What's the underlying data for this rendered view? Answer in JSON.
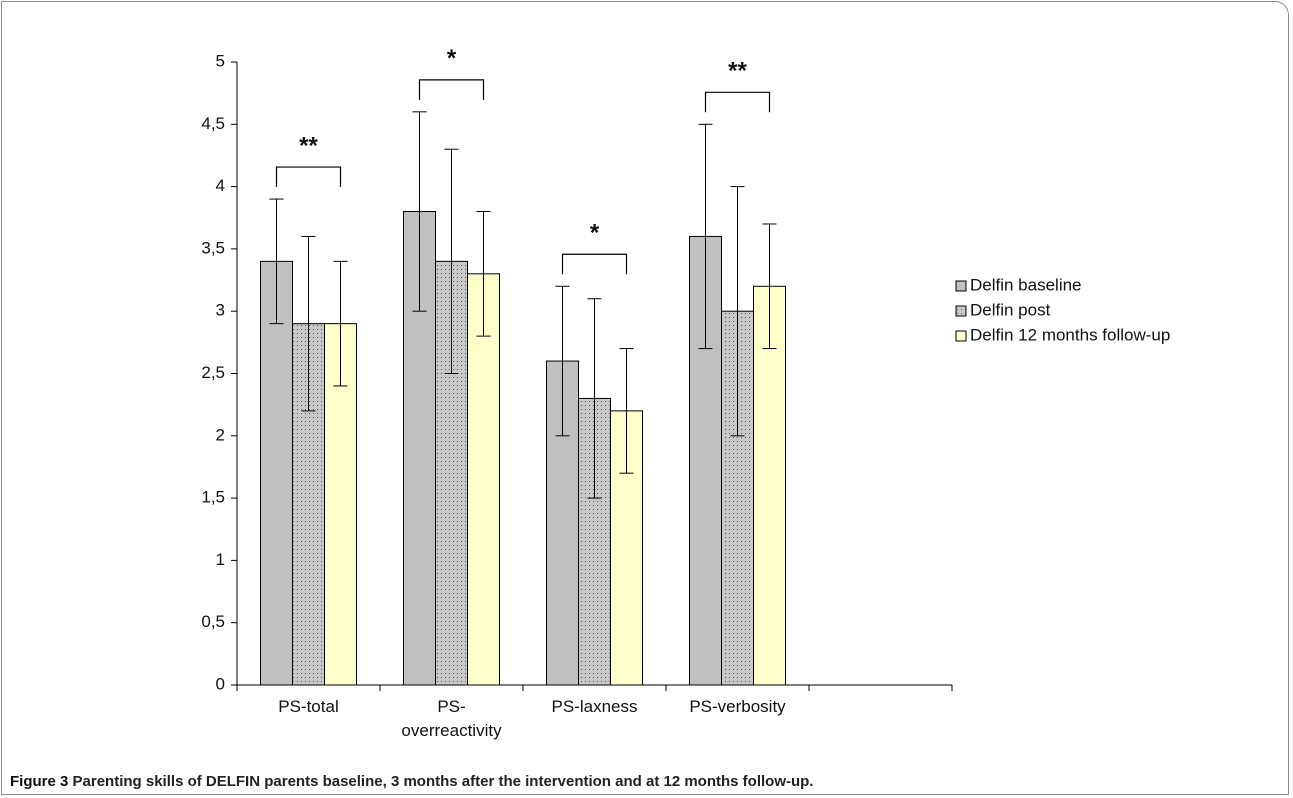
{
  "chart_data": {
    "type": "bar",
    "categories": [
      "PS-total",
      "PS-overreactivity",
      "PS-laxness",
      "PS-verbosity",
      null
    ],
    "series": [
      {
        "name": "Delfin baseline",
        "color": "#c0c0c0",
        "values": [
          3.4,
          3.8,
          2.6,
          3.6,
          null
        ],
        "errors": [
          0.5,
          0.8,
          0.6,
          0.9,
          null
        ]
      },
      {
        "name": "Delfin post",
        "color": "#c8c8c8",
        "pattern": "dots",
        "values": [
          2.9,
          3.4,
          2.3,
          3.0,
          null
        ],
        "errors": [
          0.7,
          0.9,
          0.8,
          1.0,
          null
        ]
      },
      {
        "name": "Delfin 12 months follow-up",
        "color": "#ffffcc",
        "values": [
          2.9,
          3.3,
          2.2,
          3.2,
          null
        ],
        "errors": [
          0.5,
          0.5,
          0.5,
          0.5,
          null
        ]
      }
    ],
    "annotations": [
      "**",
      "*",
      "*",
      "**"
    ],
    "ylim": [
      0,
      5
    ],
    "yticks": [
      0,
      {
        "value": 0.5,
        "label": "0,5"
      },
      1,
      {
        "value": 1.5,
        "label": "1,5"
      },
      2,
      {
        "value": 2.5,
        "label": "2,5"
      },
      3,
      {
        "value": 3.5,
        "label": "3,5"
      },
      4,
      {
        "value": 4.5,
        "label": "4,5"
      },
      5
    ],
    "legend": "right",
    "caption_label": "Figure 3",
    "caption": "Parenting skills of DELFIN parents baseline, 3 months after the intervention and at 12 months follow-up."
  }
}
